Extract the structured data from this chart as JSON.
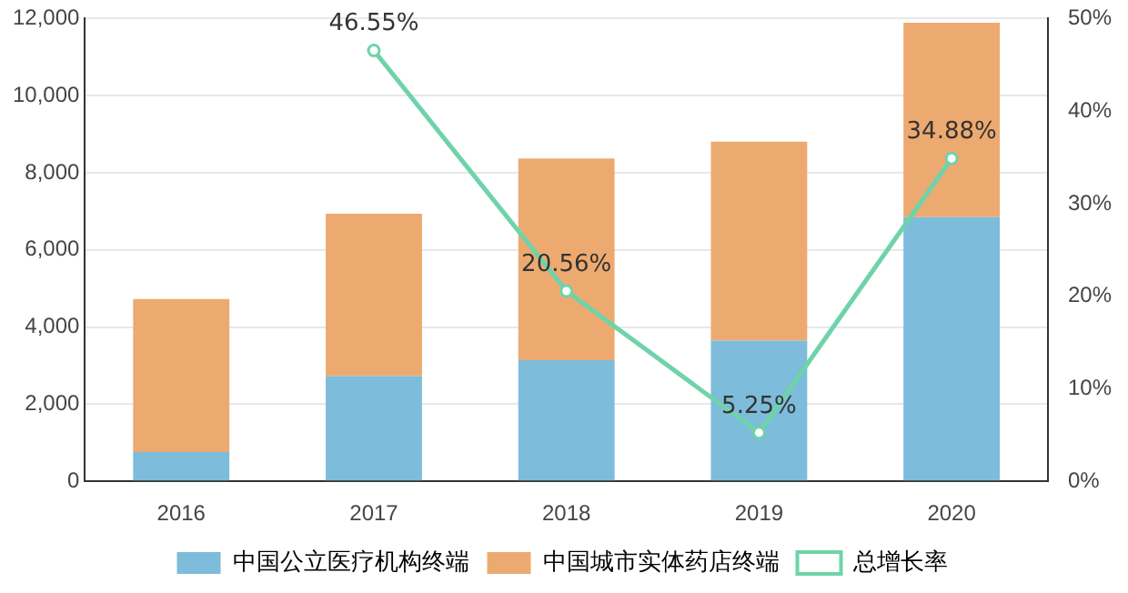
{
  "chart_data": {
    "type": "bar",
    "stacked": true,
    "categories": [
      "2016",
      "2017",
      "2018",
      "2019",
      "2020"
    ],
    "series": [
      {
        "name": "中国公立医疗机构终端",
        "color": "#7dbcda",
        "values": [
          760,
          2730,
          3140,
          3650,
          6850
        ]
      },
      {
        "name": "中国城市实体药店终端",
        "color": "#edaa70",
        "values": [
          3970,
          4210,
          5230,
          5160,
          5040
        ]
      },
      {
        "name": "总增长率",
        "type": "line",
        "axis": "y2",
        "color": "#6fd3aa",
        "marker": "circle",
        "values": [
          null,
          46.55,
          20.56,
          5.25,
          34.88
        ],
        "value_labels": [
          null,
          "46.55%",
          "20.56%",
          "5.25%",
          "34.88%"
        ]
      }
    ],
    "ylim": [
      0,
      12000
    ],
    "yticks": [
      {
        "value": 0,
        "label": "0"
      },
      {
        "value": 2000,
        "label": "2,000"
      },
      {
        "value": 4000,
        "label": "4,000"
      },
      {
        "value": 6000,
        "label": "6,000"
      },
      {
        "value": 8000,
        "label": "8,000"
      },
      {
        "value": 10000,
        "label": "10,000"
      },
      {
        "value": 12000,
        "label": "12,000"
      }
    ],
    "y2lim": [
      0,
      50
    ],
    "y2ticks": [
      {
        "value": 0,
        "label": "0%"
      },
      {
        "value": 10,
        "label": "10%"
      },
      {
        "value": 20,
        "label": "20%"
      },
      {
        "value": 30,
        "label": "30%"
      },
      {
        "value": 40,
        "label": "40%"
      },
      {
        "value": 50,
        "label": "50%"
      }
    ],
    "grid": "y",
    "legend": "bottom"
  }
}
